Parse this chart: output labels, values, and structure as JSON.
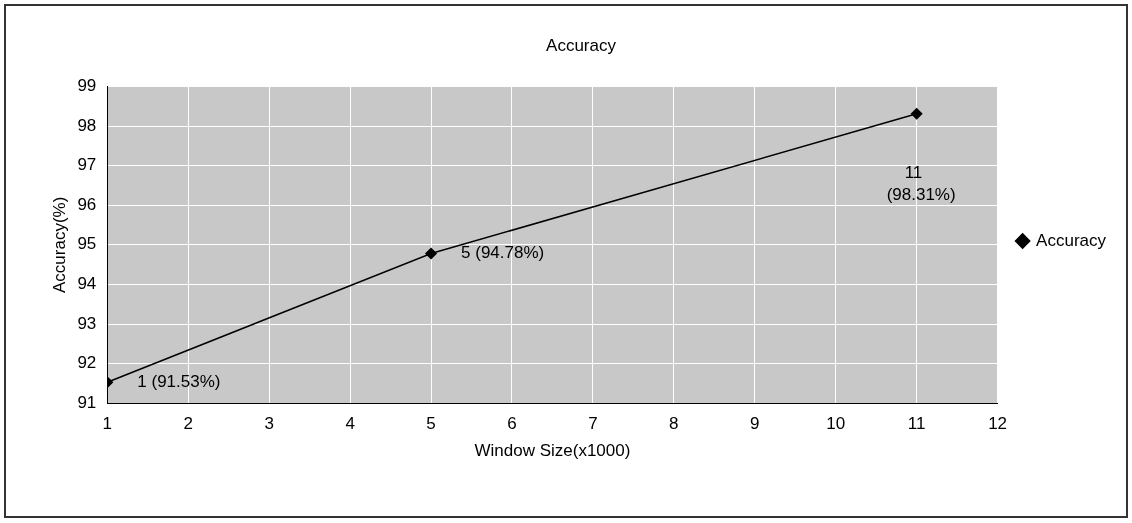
{
  "chart_data": {
    "type": "line",
    "title": "Accuracy",
    "xlabel": "Window Size(x1000)",
    "ylabel": "Accuracy(%)",
    "x": [
      1,
      5,
      11
    ],
    "series": [
      {
        "name": "Accuracy",
        "color": "#000000",
        "values": [
          91.53,
          94.78,
          98.31
        ]
      }
    ],
    "xlim": [
      1,
      12
    ],
    "xticks": [
      1,
      2,
      3,
      4,
      5,
      6,
      7,
      8,
      9,
      10,
      11,
      12
    ],
    "ylim": [
      91,
      99
    ],
    "yticks": [
      91,
      92,
      93,
      94,
      95,
      96,
      97,
      98,
      99
    ],
    "grid": true,
    "legend": "right",
    "marker": "diamond",
    "line_style": "solid",
    "annotations": [
      {
        "text": "1 (91.53%)",
        "x": 1,
        "y": 91.53
      },
      {
        "text": "5 (94.78%)",
        "x": 5,
        "y": 94.78
      },
      {
        "text": "11 (98.31%)",
        "x": 11,
        "y": 98.31
      }
    ]
  }
}
